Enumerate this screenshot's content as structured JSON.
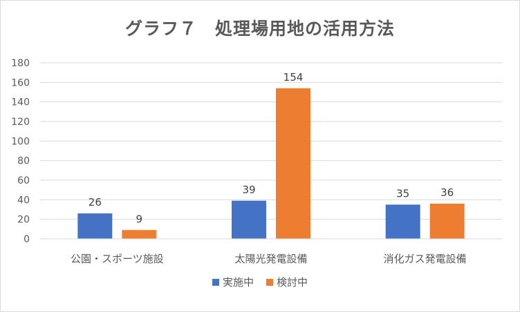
{
  "chart_data": {
    "type": "bar",
    "title": "グラフ７　処理場用地の活用方法",
    "categories": [
      "公園・スポーツ施設",
      "太陽光発電設備",
      "消化ガス発電設備"
    ],
    "series": [
      {
        "name": "実施中",
        "values": [
          26,
          39,
          35
        ],
        "color": "#4472c4"
      },
      {
        "name": "検討中",
        "values": [
          9,
          154,
          36
        ],
        "color": "#ed7d31"
      }
    ],
    "ylim": [
      0,
      180
    ],
    "yticks": [
      0,
      20,
      40,
      60,
      80,
      100,
      120,
      140,
      160,
      180
    ],
    "grid": true,
    "data_labels": true,
    "legend": "bottom"
  }
}
